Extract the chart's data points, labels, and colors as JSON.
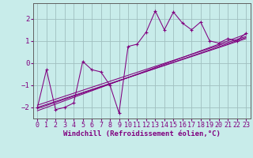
{
  "xlabel": "Windchill (Refroidissement éolien,°C)",
  "bg_color": "#c8ecea",
  "line_color": "#800080",
  "grid_color": "#a0bfbf",
  "xlim": [
    -0.5,
    23.5
  ],
  "ylim": [
    -2.5,
    2.7
  ],
  "xticks": [
    0,
    1,
    2,
    3,
    4,
    5,
    6,
    7,
    8,
    9,
    10,
    11,
    12,
    13,
    14,
    15,
    16,
    17,
    18,
    19,
    20,
    21,
    22,
    23
  ],
  "yticks": [
    -2,
    -1,
    0,
    1,
    2
  ],
  "scatter_x": [
    0,
    1,
    2,
    3,
    4,
    5,
    6,
    7,
    8,
    9,
    10,
    11,
    12,
    13,
    14,
    15,
    16,
    17,
    18,
    19,
    20,
    21,
    22,
    23
  ],
  "scatter_y": [
    -2.0,
    -0.3,
    -2.1,
    -2.0,
    -1.8,
    0.07,
    -0.3,
    -0.4,
    -1.0,
    -2.25,
    0.75,
    0.85,
    1.4,
    2.35,
    1.5,
    2.3,
    1.8,
    1.5,
    1.85,
    1.0,
    0.9,
    1.1,
    1.0,
    1.35
  ],
  "reg_lines": [
    {
      "x": [
        0,
        23
      ],
      "y": [
        -2.15,
        1.3
      ]
    },
    {
      "x": [
        0,
        23
      ],
      "y": [
        -2.0,
        1.1
      ]
    },
    {
      "x": [
        0,
        23
      ],
      "y": [
        -1.9,
        1.2
      ]
    },
    {
      "x": [
        0,
        23
      ],
      "y": [
        -2.05,
        1.15
      ]
    }
  ],
  "tick_fontsize": 6.5,
  "xlabel_fontsize": 6.5
}
